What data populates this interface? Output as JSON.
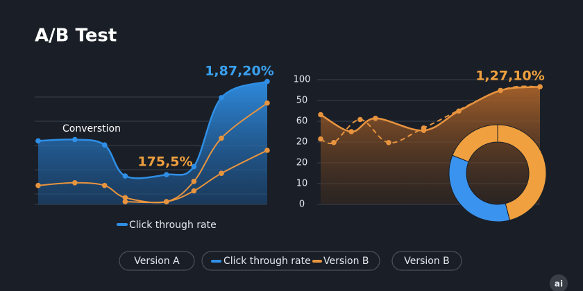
{
  "title": "A/B Test",
  "chart_data": [
    {
      "type": "line",
      "area_series": 0,
      "xlim": [
        0,
        100
      ],
      "ylim": [
        0,
        100
      ],
      "series": [
        {
          "name": "Click through rate",
          "color": "#2f8fe6",
          "x": [
            0,
            16,
            29,
            38,
            56,
            68,
            80,
            100
          ],
          "values": [
            47,
            48,
            44,
            21,
            22,
            28,
            79,
            91
          ]
        },
        {
          "color": "#e8943e",
          "x": [
            0,
            16,
            29,
            38,
            56,
            68,
            80,
            100
          ],
          "values": [
            14,
            16,
            14,
            5,
            2,
            17,
            49,
            75
          ]
        },
        {
          "color": "#e8943e",
          "x": [
            0,
            16,
            29,
            38,
            56,
            68,
            80,
            100
          ],
          "values": [
            null,
            null,
            null,
            2,
            2,
            10,
            23,
            40
          ]
        }
      ],
      "annotations": [
        "Converstion",
        "175,5%",
        "1,87,20%"
      ]
    },
    {
      "type": "line",
      "area_series": 0,
      "xlim": [
        0,
        100
      ],
      "ylim": [
        0,
        100
      ],
      "y_categories": [
        "100",
        "50",
        "60",
        "20",
        "20",
        "10",
        "0"
      ],
      "series": [
        {
          "color": "#e8943e",
          "x": [
            0,
            14,
            25,
            47,
            63,
            82,
            100
          ],
          "values": [
            74,
            60,
            71,
            61,
            77,
            94,
            97
          ]
        },
        {
          "color": "#e8943e",
          "dashed": true,
          "x": [
            0,
            6,
            18,
            31,
            47,
            82,
            100
          ],
          "values": [
            54,
            51,
            70,
            51,
            63,
            94,
            97
          ]
        }
      ],
      "annotations": [
        "1,27,10%"
      ]
    },
    {
      "type": "pie",
      "values": [
        46,
        35,
        19
      ],
      "colors": [
        "#f0a03e",
        "#3a93ee",
        "#f0a03e"
      ]
    }
  ],
  "footer_buttons": [
    [
      "Version A"
    ],
    [
      "Click through rate",
      "Version B"
    ],
    [
      "Version B"
    ]
  ],
  "badge": "ai"
}
